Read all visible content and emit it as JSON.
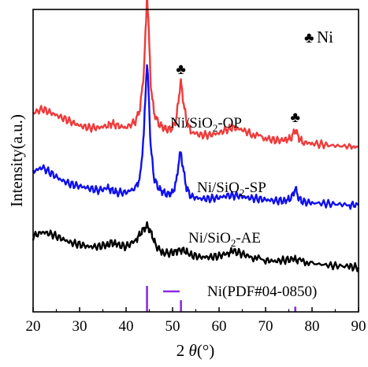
{
  "chart_data": {
    "type": "line",
    "xlabel": "2 θ(°)",
    "xlabel_prefix": "2 ",
    "xlabel_theta": "θ",
    "xlabel_suffix": "(°)",
    "ylabel": "Intensity(a.u.)",
    "xlim": [
      20,
      90
    ],
    "x_ticks": [
      "20",
      "30",
      "40",
      "50",
      "60",
      "70",
      "80",
      "90"
    ],
    "grid": false,
    "legend_symbol": "♣",
    "legend_label": "Ni",
    "peak_marker": "♣",
    "peak_marker_positions": [
      44.5,
      51.8,
      76.4
    ],
    "series": [
      {
        "name": "Ni/SiO2-OP",
        "label_main": "Ni/SiO",
        "label_sub": "2",
        "label_tail": "-OP",
        "color": "#ef3b3b",
        "points": [
          [
            20,
            0.76
          ],
          [
            22,
            0.78
          ],
          [
            24,
            0.76
          ],
          [
            26,
            0.74
          ],
          [
            28,
            0.72
          ],
          [
            30,
            0.7
          ],
          [
            32,
            0.69
          ],
          [
            34,
            0.69
          ],
          [
            36,
            0.7
          ],
          [
            37,
            0.71
          ],
          [
            38,
            0.7
          ],
          [
            40,
            0.69
          ],
          [
            42,
            0.72
          ],
          [
            43,
            0.78
          ],
          [
            43.8,
            0.95
          ],
          [
            44.3,
            1.2
          ],
          [
            44.5,
            1.34
          ],
          [
            44.8,
            1.2
          ],
          [
            45.3,
            0.9
          ],
          [
            46,
            0.76
          ],
          [
            47,
            0.71
          ],
          [
            48,
            0.69
          ],
          [
            49,
            0.68
          ],
          [
            50,
            0.69
          ],
          [
            50.8,
            0.73
          ],
          [
            51.4,
            0.85
          ],
          [
            51.8,
            0.91
          ],
          [
            52.3,
            0.82
          ],
          [
            53,
            0.72
          ],
          [
            54,
            0.67
          ],
          [
            56,
            0.655
          ],
          [
            58,
            0.655
          ],
          [
            60,
            0.665
          ],
          [
            62,
            0.685
          ],
          [
            63,
            0.69
          ],
          [
            65,
            0.68
          ],
          [
            67,
            0.66
          ],
          [
            70,
            0.64
          ],
          [
            72,
            0.63
          ],
          [
            74,
            0.63
          ],
          [
            75.5,
            0.64
          ],
          [
            76.4,
            0.68
          ],
          [
            77.2,
            0.64
          ],
          [
            78,
            0.62
          ],
          [
            80,
            0.615
          ],
          [
            84,
            0.605
          ],
          [
            88,
            0.6
          ],
          [
            90,
            0.595
          ]
        ]
      },
      {
        "name": "Ni/SiO2-SP",
        "label_main": "Ni/SiO",
        "label_sub": "2",
        "label_tail": "-SP",
        "color": "#1010ee",
        "points": [
          [
            20,
            0.48
          ],
          [
            22,
            0.5
          ],
          [
            24,
            0.47
          ],
          [
            26,
            0.44
          ],
          [
            28,
            0.42
          ],
          [
            30,
            0.41
          ],
          [
            32,
            0.4
          ],
          [
            34,
            0.39
          ],
          [
            36,
            0.4
          ],
          [
            37,
            0.39
          ],
          [
            38,
            0.38
          ],
          [
            40,
            0.38
          ],
          [
            42,
            0.4
          ],
          [
            43,
            0.45
          ],
          [
            43.8,
            0.65
          ],
          [
            44.3,
            0.92
          ],
          [
            44.5,
            1.0
          ],
          [
            44.8,
            0.88
          ],
          [
            45.3,
            0.6
          ],
          [
            46,
            0.45
          ],
          [
            47,
            0.4
          ],
          [
            48,
            0.38
          ],
          [
            49,
            0.37
          ],
          [
            50,
            0.38
          ],
          [
            50.8,
            0.43
          ],
          [
            51.4,
            0.54
          ],
          [
            51.8,
            0.57
          ],
          [
            52.3,
            0.49
          ],
          [
            53,
            0.4
          ],
          [
            54,
            0.36
          ],
          [
            56,
            0.35
          ],
          [
            58,
            0.35
          ],
          [
            60,
            0.355
          ],
          [
            62,
            0.365
          ],
          [
            64,
            0.365
          ],
          [
            66,
            0.355
          ],
          [
            68,
            0.35
          ],
          [
            70,
            0.345
          ],
          [
            72,
            0.34
          ],
          [
            74,
            0.34
          ],
          [
            75.5,
            0.35
          ],
          [
            76.4,
            0.4
          ],
          [
            77.2,
            0.35
          ],
          [
            78,
            0.335
          ],
          [
            80,
            0.33
          ],
          [
            84,
            0.325
          ],
          [
            88,
            0.32
          ],
          [
            90,
            0.32
          ]
        ]
      },
      {
        "name": "Ni/SiO2-AE",
        "label_main": "Ni/SiO",
        "label_sub": "2",
        "label_tail": "-AE",
        "color": "#000000",
        "points": [
          [
            20,
            0.17
          ],
          [
            22,
            0.19
          ],
          [
            24,
            0.18
          ],
          [
            26,
            0.16
          ],
          [
            28,
            0.14
          ],
          [
            30,
            0.13
          ],
          [
            32,
            0.12
          ],
          [
            34,
            0.12
          ],
          [
            36,
            0.13
          ],
          [
            37,
            0.14
          ],
          [
            38,
            0.13
          ],
          [
            40,
            0.12
          ],
          [
            42,
            0.15
          ],
          [
            43,
            0.18
          ],
          [
            44,
            0.21
          ],
          [
            44.6,
            0.22
          ],
          [
            45.5,
            0.18
          ],
          [
            46.5,
            0.12
          ],
          [
            48,
            0.09
          ],
          [
            50,
            0.09
          ],
          [
            51.5,
            0.105
          ],
          [
            52.5,
            0.1
          ],
          [
            54,
            0.08
          ],
          [
            56,
            0.07
          ],
          [
            58,
            0.07
          ],
          [
            60,
            0.075
          ],
          [
            62,
            0.09
          ],
          [
            63,
            0.1
          ],
          [
            65,
            0.085
          ],
          [
            67,
            0.07
          ],
          [
            70,
            0.055
          ],
          [
            72,
            0.05
          ],
          [
            74,
            0.055
          ],
          [
            76,
            0.06
          ],
          [
            77,
            0.055
          ],
          [
            80,
            0.04
          ],
          [
            84,
            0.03
          ],
          [
            88,
            0.025
          ],
          [
            90,
            0.02
          ]
        ]
      }
    ],
    "reference": {
      "label": "Ni(PDF#04-0850)",
      "color": "#8a2be2",
      "sticks": [
        [
          44.5,
          1.0
        ],
        [
          51.8,
          0.45
        ],
        [
          76.4,
          0.2
        ]
      ]
    }
  }
}
